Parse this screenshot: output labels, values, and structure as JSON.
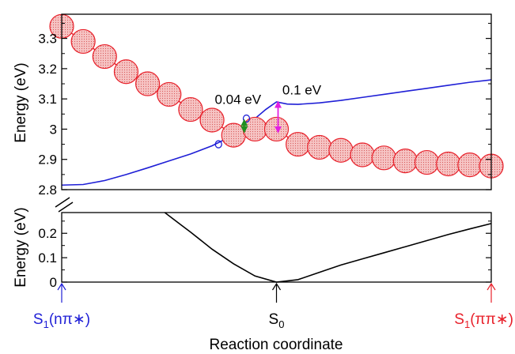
{
  "chart_data": [
    {
      "type": "line",
      "ylabel": "Energy (eV)",
      "ylim": [
        2.8,
        3.38
      ],
      "yticks": [
        "2.8",
        "2.9",
        "3",
        "3.1",
        "3.2",
        "3.3"
      ],
      "x_range": [
        -10,
        10
      ],
      "grid": false,
      "series": [
        {
          "label": "nπ* state (S1 nπ*)",
          "color": "#1f1fd6",
          "x": [
            -10,
            -9,
            -8,
            -7,
            -6,
            -5,
            -4,
            -3,
            -2,
            -1.5,
            -1,
            -0.5,
            0,
            0.5,
            1,
            2,
            3,
            4,
            5,
            6,
            7,
            8,
            9,
            10
          ],
          "y": [
            2.815,
            2.817,
            2.83,
            2.85,
            2.872,
            2.895,
            2.918,
            2.945,
            2.98,
            3.005,
            3.035,
            3.065,
            3.09,
            3.083,
            3.082,
            3.087,
            3.095,
            3.105,
            3.115,
            3.125,
            3.135,
            3.145,
            3.155,
            3.163
          ]
        },
        {
          "label": "ππ* state (S1 ππ*)",
          "color": "#e8202a",
          "marker": "large dotted circle",
          "x": [
            -10,
            -9,
            -8,
            -7,
            -6,
            -5,
            -4,
            -3,
            -2,
            -1,
            0,
            1,
            2,
            3,
            4,
            5,
            6,
            7,
            8,
            9,
            10
          ],
          "y": [
            3.34,
            3.29,
            3.24,
            3.19,
            3.15,
            3.115,
            3.065,
            3.03,
            2.98,
            3.0,
            3.0,
            2.95,
            2.94,
            2.93,
            2.915,
            2.905,
            2.895,
            2.89,
            2.885,
            2.882,
            2.878
          ]
        }
      ],
      "crossing_markers": [
        {
          "x": -2.7,
          "y": 2.95,
          "color": "#1f1fd6"
        },
        {
          "x": -1.4,
          "y": 3.035,
          "color": "#1f1fd6"
        }
      ],
      "annotations": [
        {
          "text": "0.04 eV",
          "color": "#1f8f1f",
          "x": -1.5,
          "from_y": 3.03,
          "to_y": 2.99
        },
        {
          "text": "0.1 eV",
          "color": "#e21fe2",
          "x": 0.0,
          "from_y": 3.09,
          "to_y": 2.99
        }
      ]
    },
    {
      "type": "line",
      "ylabel": "Energy (eV)",
      "ylim": [
        0,
        0.285
      ],
      "yticks": [
        "0",
        "0.1",
        "0.2"
      ],
      "x_range": [
        -10,
        10
      ],
      "xlabel": "Reaction coordinate",
      "grid": false,
      "series": [
        {
          "label": "S0",
          "color": "#000000",
          "x": [
            -5.2,
            -4.5,
            -4,
            -3,
            -2,
            -1,
            0,
            1,
            2,
            3,
            4,
            5,
            6,
            7,
            8,
            9,
            10
          ],
          "y": [
            0.285,
            0.238,
            0.205,
            0.135,
            0.075,
            0.025,
            0.0,
            0.01,
            0.04,
            0.07,
            0.095,
            0.12,
            0.145,
            0.17,
            0.195,
            0.218,
            0.24
          ]
        }
      ],
      "x_markers": [
        {
          "x": -10,
          "label_main": "S",
          "label_sub": "1",
          "label_rest": "(nπ∗)",
          "color": "#1f1fd6"
        },
        {
          "x": 0,
          "label_main": "S",
          "label_sub": "0",
          "label_rest": "",
          "color": "#000000"
        },
        {
          "x": 10,
          "label_main": "S",
          "label_sub": "1",
          "label_rest": "(ππ∗)",
          "color": "#e8202a"
        }
      ]
    }
  ]
}
